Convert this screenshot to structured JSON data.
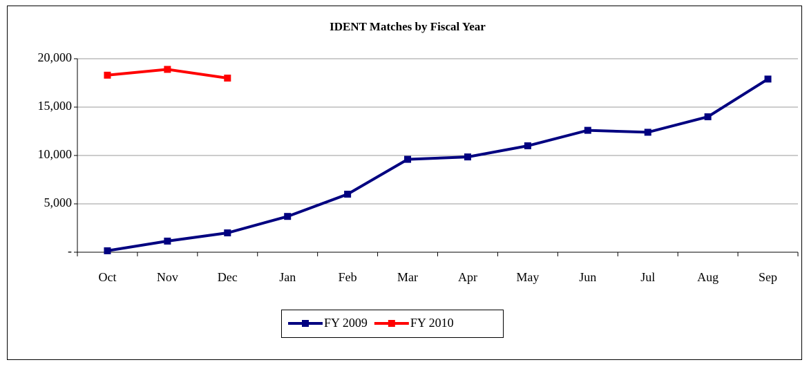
{
  "chart_data": {
    "type": "line",
    "title": "IDENT Matches by Fiscal Year",
    "categories": [
      "Oct",
      "Nov",
      "Dec",
      "Jan",
      "Feb",
      "Mar",
      "Apr",
      "May",
      "Jun",
      "Jul",
      "Aug",
      "Sep"
    ],
    "series": [
      {
        "name": "FY 2009",
        "color": "#000080",
        "values": [
          150,
          1150,
          2000,
          3700,
          6000,
          9600,
          9850,
          11000,
          12600,
          12400,
          14000,
          17900
        ]
      },
      {
        "name": "FY 2010",
        "color": "#ff0000",
        "values": [
          18300,
          18900,
          18000,
          null,
          null,
          null,
          null,
          null,
          null,
          null,
          null,
          null
        ]
      }
    ],
    "ylim": [
      0,
      20000
    ],
    "yticks": [
      {
        "value": 0,
        "label": "-"
      },
      {
        "value": 5000,
        "label": "5,000"
      },
      {
        "value": 10000,
        "label": "10,000"
      },
      {
        "value": 15000,
        "label": "15,000"
      },
      {
        "value": 20000,
        "label": "20,000"
      }
    ],
    "grid": true,
    "legend": "bottom"
  }
}
